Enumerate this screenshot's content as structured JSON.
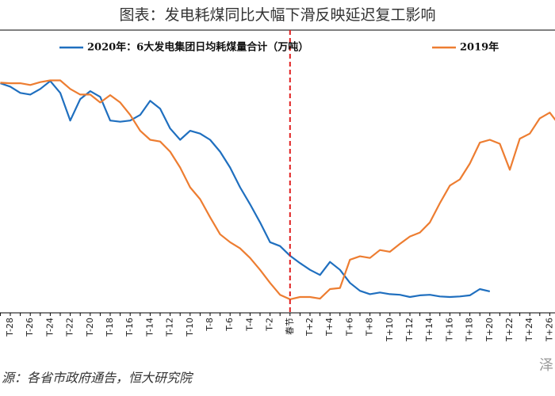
{
  "chart_data": {
    "type": "line",
    "title": "图表：发电耗煤同比大幅下滑反映延迟复工影响",
    "source": "源：各省市政府通告，恒大研究院",
    "watermark": "泽",
    "categories": [
      null,
      "T-28",
      null,
      "T-26",
      null,
      "T-24",
      null,
      "T-22",
      null,
      "T-20",
      null,
      "T-18",
      null,
      "T-16",
      null,
      "T-14",
      null,
      "T-12",
      null,
      "T-10",
      null,
      "T-8",
      null,
      "T-6",
      null,
      "T-4",
      null,
      "T-2",
      null,
      "春节",
      null,
      "T+2",
      null,
      "T+4",
      null,
      "T+6",
      null,
      "T+8",
      null,
      "T+10",
      null,
      "T+12",
      null,
      "T+14",
      null,
      "T+16",
      null,
      "T+18",
      null,
      "T+20",
      null,
      "T+22",
      null,
      "T+24",
      null,
      "T+26",
      null
    ],
    "series": [
      {
        "name": "2020年：6大发电集团日均耗煤量合计（万吨）",
        "color": "#1f6fbf",
        "values": [
          70.6,
          70.0,
          68.9,
          68.6,
          69.6,
          71.0,
          68.9,
          64.0,
          67.8,
          69.2,
          68.2,
          64.0,
          63.8,
          64.0,
          65.0,
          67.5,
          66.1,
          62.6,
          60.6,
          62.2,
          61.7,
          60.6,
          58.5,
          55.7,
          52.2,
          49.2,
          46.0,
          42.5,
          41.8,
          40.1,
          38.8,
          37.6,
          36.7,
          39.0,
          37.6,
          35.3,
          33.9,
          33.3,
          33.6,
          33.3,
          33.2,
          32.8,
          33.1,
          33.2,
          32.9,
          32.8,
          32.9,
          33.1,
          34.2,
          33.8,
          null,
          null,
          null,
          null,
          null,
          null,
          null
        ]
      },
      {
        "name": "2019年",
        "color": "#ed7d31",
        "values": [
          70.7,
          70.6,
          70.6,
          70.3,
          70.8,
          71.1,
          71.1,
          69.6,
          68.6,
          68.6,
          67.2,
          68.5,
          67.2,
          65.0,
          62.2,
          60.6,
          60.3,
          58.5,
          55.7,
          52.2,
          50.1,
          46.9,
          43.9,
          42.5,
          41.4,
          39.7,
          37.6,
          35.3,
          33.2,
          32.4,
          32.8,
          32.8,
          32.5,
          34.2,
          34.4,
          39.4,
          40.0,
          39.7,
          41.1,
          40.8,
          42.2,
          43.5,
          44.2,
          46.0,
          49.4,
          52.5,
          53.6,
          56.4,
          60.1,
          60.6,
          59.9,
          55.3,
          60.8,
          61.7,
          64.4,
          65.4,
          63.1
        ]
      }
    ],
    "ylim": [
      30,
      80
    ]
  }
}
